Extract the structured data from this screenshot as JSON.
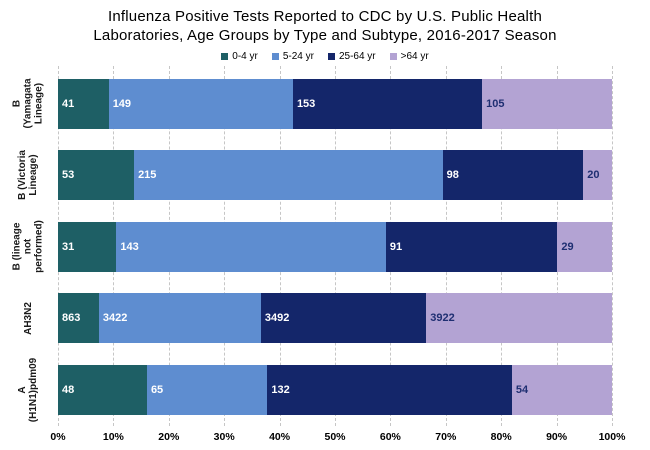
{
  "title_lines": [
    "Influenza Positive Tests Reported to CDC by U.S. Public Health",
    "Laboratories, Age Groups by Type and Subtype, 2016-2017 Season"
  ],
  "colors": {
    "age_0_4": "#1E5F65",
    "age_5_24": "#5E8DD0",
    "age_25_64": "#14266A",
    "age_over_64": "#B3A3D3",
    "value_on_light": "#1F2F72",
    "value_on_dark": "#ffffff",
    "gridline": "#c6c6c6"
  },
  "chart_data": {
    "type": "bar",
    "stacked": true,
    "normalized_to_percent": true,
    "orientation": "horizontal",
    "grid": "vertical-dashed",
    "legend_position": "top-center",
    "categories": [
      "B (Yamagata\nLineage)",
      "B (Victoria\nLineage)",
      "B (lineage not\nperformed)",
      "AH3N2",
      "A\n(H1N1)pdm09"
    ],
    "series": [
      {
        "name": "0-4 yr",
        "color": "#1E5F65",
        "value_color": "#ffffff",
        "values": [
          41,
          53,
          31,
          863,
          48
        ]
      },
      {
        "name": "5-24 yr",
        "color": "#5E8DD0",
        "value_color": "#ffffff",
        "values": [
          149,
          215,
          143,
          3422,
          65
        ]
      },
      {
        "name": "25-64 yr",
        "color": "#14266A",
        "value_color": "#ffffff",
        "values": [
          153,
          98,
          91,
          3492,
          132
        ]
      },
      {
        "name": ">64 yr",
        "color": "#B3A3D3",
        "value_color": "#1F2F72",
        "values": [
          105,
          20,
          29,
          3922,
          54
        ]
      }
    ],
    "x_ticks": [
      "0%",
      "10%",
      "20%",
      "30%",
      "40%",
      "50%",
      "60%",
      "70%",
      "80%",
      "90%",
      "100%"
    ],
    "xlim": [
      0,
      100
    ],
    "xlabel": "",
    "ylabel": ""
  }
}
